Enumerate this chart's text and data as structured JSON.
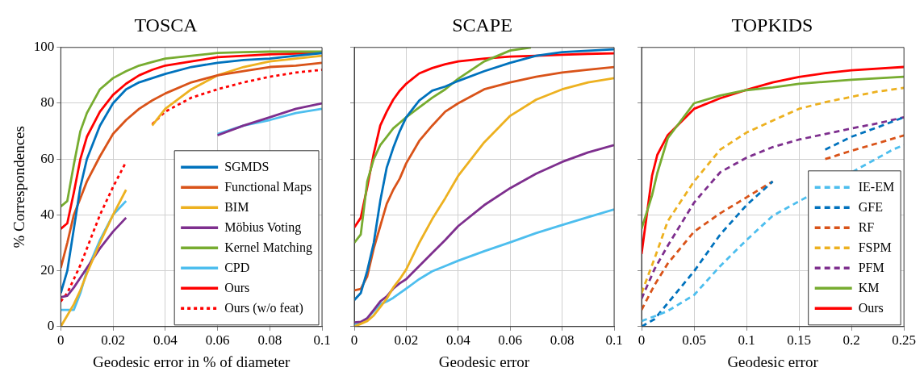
{
  "chart_data": [
    {
      "type": "line",
      "title": "TOSCA",
      "xlabel": "Geodesic error in % of diameter",
      "ylabel": "% Correspondences",
      "x": [
        0,
        0.0025,
        0.005,
        0.0075,
        0.01,
        0.015,
        0.02,
        0.025,
        0.03,
        0.035,
        0.04,
        0.05,
        0.06,
        0.07,
        0.08,
        0.09,
        0.1
      ],
      "xlim": [
        0,
        0.1
      ],
      "xticks": [
        0,
        0.02,
        0.04,
        0.06,
        0.08,
        0.1
      ],
      "ylim": [
        0,
        100
      ],
      "yticks": [
        0,
        20,
        40,
        60,
        80,
        100
      ],
      "grid": true,
      "legend": "bottom right",
      "series": [
        {
          "name": "SGMDS",
          "color": "#0072bd",
          "values": [
            12,
            20,
            35,
            50,
            60,
            72,
            80,
            85,
            87.5,
            89,
            90.5,
            93,
            94.5,
            95.5,
            96,
            97,
            98
          ]
        },
        {
          "name": "Functional Maps",
          "color": "#d95319",
          "values": [
            21,
            30,
            40,
            46,
            52,
            61,
            69,
            74,
            78,
            81,
            83.5,
            87.5,
            90,
            91.5,
            93,
            93.5,
            94.5
          ]
        },
        {
          "name": "BIM",
          "color": "#edb120",
          "values": [
            0,
            4,
            8,
            13,
            19,
            30,
            40,
            49,
            null,
            72,
            78,
            85,
            90,
            93,
            95,
            96,
            97
          ]
        },
        {
          "name": "Möbius Voting",
          "color": "#7e2f8e",
          "values": [
            10.5,
            11,
            14,
            17.5,
            21,
            28,
            34,
            39,
            null,
            null,
            null,
            null,
            68.5,
            72,
            75,
            78,
            80
          ]
        },
        {
          "name": "Kernel Matching",
          "color": "#77ac30",
          "values": [
            43,
            45,
            58,
            70,
            76.5,
            85,
            89,
            91.5,
            93.5,
            94.8,
            96,
            97,
            98,
            98.3,
            98.5,
            98.5,
            98.5
          ]
        },
        {
          "name": "CPD",
          "color": "#4dbeee",
          "values": [
            6,
            6,
            6,
            12,
            20,
            31,
            40,
            45,
            null,
            null,
            null,
            null,
            69,
            72,
            74,
            76.5,
            78
          ]
        },
        {
          "name": "Ours",
          "color": "#ff0000",
          "values": [
            35,
            37,
            48,
            60,
            68,
            77,
            83,
            87,
            90,
            92,
            93.5,
            95,
            96.5,
            97,
            97.5,
            97.8,
            98
          ]
        },
        {
          "name": "Ours (w/o feat)",
          "color": "#ff0000",
          "line_style": "dotted",
          "values": [
            9,
            12,
            17,
            22,
            28,
            40,
            50,
            59,
            null,
            72.5,
            77,
            82,
            85,
            87.5,
            89.5,
            91,
            92
          ]
        }
      ]
    },
    {
      "type": "line",
      "title": "SCAPE",
      "xlabel": "Geodesic error",
      "x": [
        0,
        0.0025,
        0.005,
        0.0075,
        0.01,
        0.0125,
        0.015,
        0.0175,
        0.02,
        0.025,
        0.03,
        0.035,
        0.04,
        0.05,
        0.06,
        0.07,
        0.08,
        0.09,
        0.1
      ],
      "xlim": [
        0,
        0.1
      ],
      "xticks": [
        0,
        0.02,
        0.04,
        0.06,
        0.08,
        0.1
      ],
      "ylim": [
        0,
        100
      ],
      "yticks": [
        0,
        20,
        40,
        60,
        80,
        100
      ],
      "grid": true,
      "tick_labels": "x",
      "series": [
        {
          "color": "#0072bd",
          "values": [
            9.5,
            12,
            20,
            30,
            45,
            57,
            64,
            70,
            75,
            81,
            84.5,
            86,
            88,
            91.5,
            94.5,
            97,
            98.3,
            98.8,
            99.3
          ]
        },
        {
          "color": "#d95319",
          "values": [
            13,
            13.5,
            18,
            28,
            36,
            44,
            49,
            53,
            58.5,
            66.5,
            72,
            77,
            80,
            85,
            87.5,
            89.5,
            91,
            92,
            93
          ]
        },
        {
          "color": "#edb120",
          "values": [
            0,
            1,
            2,
            4,
            7,
            10,
            14,
            17,
            20.5,
            30,
            38.5,
            46,
            54,
            66,
            75.5,
            81.3,
            85,
            87.5,
            89
          ]
        },
        {
          "color": "#7e2f8e",
          "values": [
            1.5,
            1.7,
            3,
            6,
            9,
            10.8,
            13.6,
            15.5,
            17,
            21.7,
            26.4,
            31,
            36,
            43.5,
            49.6,
            54.8,
            59,
            62.4,
            65
          ]
        },
        {
          "color": "#77ac30",
          "x": [
            0,
            0.0025,
            0.005,
            0.0075,
            0.01,
            0.0125,
            0.015,
            0.0175,
            0.02,
            0.025,
            0.03,
            0.035,
            0.04,
            0.05,
            0.06,
            0.068
          ],
          "values": [
            30,
            33,
            52,
            60,
            65,
            68,
            71,
            73,
            75,
            78.5,
            82,
            85,
            88.8,
            95,
            98.9,
            100
          ]
        },
        {
          "color": "#4dbeee",
          "values": [
            0.5,
            1.5,
            3,
            5.5,
            8,
            9,
            10.3,
            12,
            13.6,
            17,
            19.8,
            21.7,
            23.6,
            27,
            30.2,
            33.5,
            36.4,
            39.2,
            42
          ]
        },
        {
          "color": "#ff0000",
          "values": [
            35.5,
            39,
            50,
            62,
            72,
            77,
            81.3,
            84.5,
            87,
            90.7,
            92.6,
            94,
            95,
            96,
            96.7,
            97,
            97.4,
            97.7,
            97.9
          ]
        }
      ]
    },
    {
      "type": "line",
      "title": "TOPKIDS",
      "xlabel": "Geodesic error",
      "x": [
        0,
        0.0125,
        0.025,
        0.05,
        0.075,
        0.1,
        0.125,
        0.15,
        0.175,
        0.2,
        0.225,
        0.25
      ],
      "xlim": [
        0,
        0.25
      ],
      "xticks": [
        0,
        0.05,
        0.1,
        0.15,
        0.2,
        0.25
      ],
      "ylim": [
        0,
        100
      ],
      "yticks": [
        0,
        20,
        40,
        60,
        80,
        100
      ],
      "grid": true,
      "tick_labels": "x",
      "legend": "bottom right",
      "series": [
        {
          "name": "IE-EM",
          "color": "#4dbeee",
          "line_style": "dashed",
          "x": [
            0,
            0.0125,
            0.025,
            0.05,
            0.075,
            0.1,
            0.125,
            0.24,
            0.25
          ],
          "values": [
            2,
            3.7,
            5.6,
            11.3,
            21.7,
            31,
            39.7,
            63.5,
            65
          ]
        },
        {
          "name": "GFE",
          "color": "#0072bd",
          "line_style": "dashed",
          "values": [
            0,
            2.7,
            8.4,
            19.8,
            33,
            43.5,
            52,
            null,
            63.4,
            68,
            71.4,
            75
          ]
        },
        {
          "name": "RF",
          "color": "#d95319",
          "line_style": "dashed",
          "values": [
            6,
            15,
            22.6,
            34,
            40.6,
            46.3,
            52,
            null,
            60,
            63,
            65.7,
            68.5
          ]
        },
        {
          "name": "FSPM",
          "color": "#edb120",
          "line_style": "dashed",
          "values": [
            12,
            24.5,
            37.8,
            52,
            63.4,
            69.5,
            73.8,
            78,
            80.4,
            82.3,
            84.2,
            85.5
          ]
        },
        {
          "name": "PFM",
          "color": "#7e2f8e",
          "line_style": "dashed",
          "values": [
            10,
            20.7,
            29,
            44.4,
            55.3,
            60.5,
            64.3,
            67,
            69,
            71,
            72.8,
            75
          ]
        },
        {
          "name": "KM",
          "color": "#77ac30",
          "x": [
            0,
            0.01,
            0.015,
            0.025,
            0.05,
            0.075,
            0.1,
            0.125,
            0.15,
            0.175,
            0.2,
            0.25
          ],
          "values": [
            35,
            47,
            55,
            67.5,
            80,
            82.8,
            84.7,
            85.7,
            87,
            87.7,
            88.4,
            89.5
          ]
        },
        {
          "name": "Ours",
          "color": "#ff0000",
          "x": [
            0,
            0.01,
            0.015,
            0.025,
            0.05,
            0.075,
            0.1,
            0.125,
            0.15,
            0.175,
            0.2,
            0.25
          ],
          "values": [
            26,
            54,
            61.5,
            68.6,
            78,
            81.8,
            84.8,
            87.5,
            89.4,
            90.8,
            91.8,
            93
          ]
        }
      ]
    }
  ]
}
